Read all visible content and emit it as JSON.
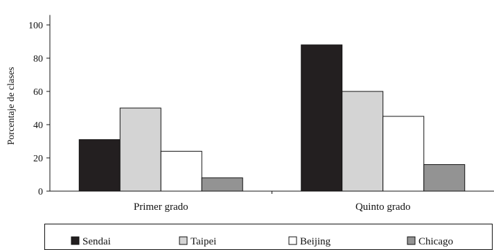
{
  "chart_data": {
    "type": "bar",
    "title": "",
    "xlabel": "",
    "ylabel": "Porcentaje de clases",
    "ylim": [
      0,
      100
    ],
    "yticks": [
      0,
      20,
      40,
      60,
      80,
      100
    ],
    "categories": [
      "Primer grado",
      "Quinto grado"
    ],
    "series": [
      {
        "name": "Sendai",
        "values": [
          31,
          88
        ],
        "color": "#231f20"
      },
      {
        "name": "Taipei",
        "values": [
          50,
          60
        ],
        "color": "#d4d4d4"
      },
      {
        "name": "Beijing",
        "values": [
          24,
          45
        ],
        "color": "#ffffff"
      },
      {
        "name": "Chicago",
        "values": [
          8,
          16
        ],
        "color": "#939393"
      }
    ],
    "grid": false,
    "legend": "bottom"
  }
}
